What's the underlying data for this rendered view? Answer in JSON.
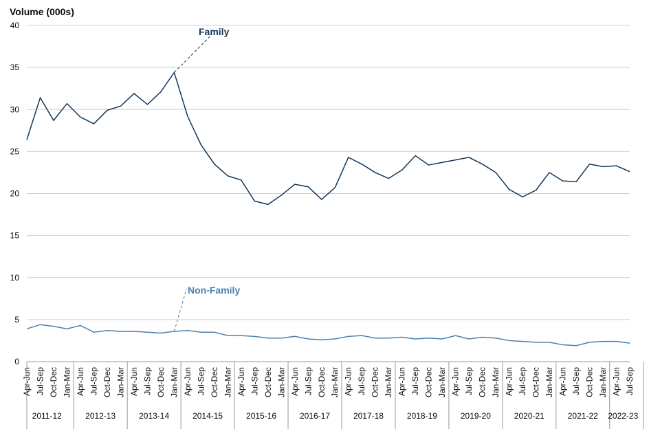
{
  "chart_data": {
    "type": "line",
    "ylabel": "Volume (000s)",
    "ylim": [
      0,
      40
    ],
    "yticks": [
      0,
      5,
      10,
      15,
      20,
      25,
      30,
      35,
      40
    ],
    "grid": true,
    "quarters": [
      "Apr-Jun",
      "Jul-Sep",
      "Oct-Dec",
      "Jan-Mar"
    ],
    "years": [
      "2011-12",
      "2012-13",
      "2013-14",
      "2014-15",
      "2015-16",
      "2016-17",
      "2017-18",
      "2018-19",
      "2019-20",
      "2020-21",
      "2021-22",
      "2022-23"
    ],
    "x": [
      "Apr-Jun",
      "Jul-Sep",
      "Oct-Dec",
      "Jan-Mar",
      "Apr-Jun",
      "Jul-Sep",
      "Oct-Dec",
      "Jan-Mar",
      "Apr-Jun",
      "Jul-Sep",
      "Oct-Dec",
      "Jan-Mar",
      "Apr-Jun",
      "Jul-Sep",
      "Oct-Dec",
      "Jan-Mar",
      "Apr-Jun",
      "Jul-Sep",
      "Oct-Dec",
      "Jan-Mar",
      "Apr-Jun",
      "Jul-Sep",
      "Oct-Dec",
      "Jan-Mar",
      "Apr-Jun",
      "Jul-Sep",
      "Oct-Dec",
      "Jan-Mar",
      "Apr-Jun",
      "Jul-Sep",
      "Oct-Dec",
      "Jan-Mar",
      "Apr-Jun",
      "Jul-Sep",
      "Oct-Dec",
      "Jan-Mar",
      "Apr-Jun",
      "Jul-Sep",
      "Oct-Dec",
      "Jan-Mar",
      "Apr-Jun",
      "Jul-Sep",
      "Oct-Dec",
      "Jan-Mar",
      "Apr-Jun",
      "Jul-Sep"
    ],
    "series": [
      {
        "name": "Family",
        "color": "#12365a",
        "values": [
          26.4,
          31.4,
          28.7,
          30.7,
          29.1,
          28.3,
          29.9,
          30.4,
          31.9,
          30.6,
          32.1,
          34.4,
          29.2,
          25.8,
          23.5,
          22.1,
          21.6,
          19.1,
          18.7,
          19.8,
          21.1,
          20.8,
          19.3,
          20.7,
          24.3,
          23.5,
          22.5,
          21.8,
          22.8,
          24.5,
          23.4,
          23.7,
          24.0,
          24.3,
          23.5,
          22.5,
          20.5,
          19.6,
          20.4,
          22.5,
          21.5,
          21.4,
          23.5,
          23.2,
          23.3,
          22.6
        ]
      },
      {
        "name": "Non-Family",
        "color": "#4a7fb0",
        "values": [
          3.9,
          4.4,
          4.2,
          3.9,
          4.3,
          3.5,
          3.7,
          3.6,
          3.6,
          3.5,
          3.4,
          3.6,
          3.7,
          3.5,
          3.5,
          3.1,
          3.1,
          3.0,
          2.8,
          2.8,
          3.0,
          2.7,
          2.6,
          2.7,
          3.0,
          3.1,
          2.8,
          2.8,
          2.9,
          2.7,
          2.8,
          2.7,
          3.1,
          2.7,
          2.9,
          2.8,
          2.5,
          2.4,
          2.3,
          2.3,
          2.0,
          1.9,
          2.3,
          2.4,
          2.4,
          2.2
        ]
      }
    ]
  }
}
